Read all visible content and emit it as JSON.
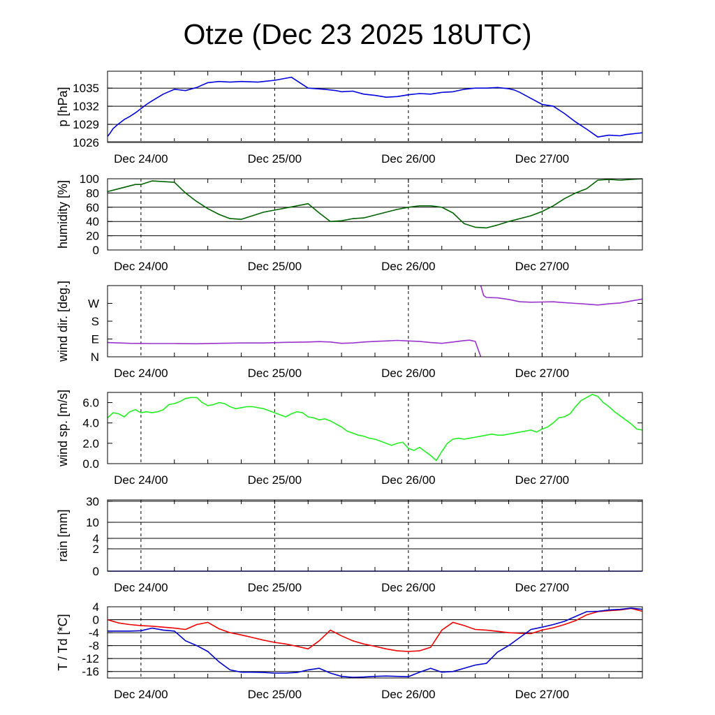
{
  "title": "Otze (Dec 23 2025 18UTC)",
  "colors": {
    "pressure": "#0000dd",
    "humidity": "#006400",
    "wind_dir": "#9932cc",
    "wind_speed": "#22ee22",
    "rain": "#0000aa",
    "temperature": "#ee0000",
    "dewpoint": "#0000cc"
  },
  "x_ticks": [
    "Dec 24/00",
    "Dec 25/00",
    "Dec 26/00",
    "Dec 27/00"
  ],
  "chart_data": [
    {
      "type": "line",
      "ylabel": "p [hPa]",
      "ylim": [
        1026,
        1037.8
      ],
      "yticks": [
        1026,
        1029,
        1032,
        1035
      ],
      "ytick_labels": [
        "1026",
        "1029",
        "1032",
        "1035"
      ],
      "grid": true,
      "series": [
        {
          "color_key": "pressure",
          "x": [
            0,
            0.5,
            1,
            2,
            3,
            4,
            5,
            6,
            7,
            8,
            10,
            12,
            14,
            16,
            18,
            20,
            22,
            24,
            27,
            30,
            33,
            36,
            39,
            40,
            41,
            42,
            44,
            46,
            48,
            50,
            52,
            54,
            56,
            58,
            60,
            62,
            64,
            66,
            68,
            70,
            72,
            73,
            74,
            76,
            78,
            80,
            82,
            84,
            86,
            88,
            90,
            92,
            93,
            94,
            95,
            96
          ],
          "y": [
            1027,
            1027.6,
            1028.3,
            1029.1,
            1029.8,
            1030.3,
            1030.9,
            1031.6,
            1032.3,
            1032.9,
            1034,
            1034.8,
            1034.6,
            1035.1,
            1035.9,
            1036.1,
            1036.0,
            1036.1,
            1036.0,
            1036.3,
            1036.8,
            1035.0,
            1034.8,
            1034.7,
            1034.6,
            1034.4,
            1034.5,
            1034.0,
            1033.8,
            1033.5,
            1033.6,
            1033.9,
            1034.1,
            1034.0,
            1034.3,
            1034.4,
            1034.8,
            1035.0,
            1035.0,
            1035.1,
            1034.9,
            1034.7,
            1034.3,
            1033.3,
            1032.3,
            1032.0,
            1030.8,
            1029.4,
            1028.2,
            1026.9,
            1027.2,
            1027.1,
            1027.3,
            1027.4,
            1027.5,
            1027.6
          ]
        }
      ]
    },
    {
      "type": "line",
      "ylabel": "humidity [%]",
      "ylim": [
        0,
        100
      ],
      "yticks": [
        0,
        20,
        40,
        60,
        80,
        100
      ],
      "ytick_labels": [
        "0",
        "20",
        "40",
        "60",
        "80",
        "100"
      ],
      "grid": true,
      "series": [
        {
          "color_key": "humidity",
          "x": [
            0,
            2,
            4,
            5,
            6,
            8,
            10,
            12,
            14,
            16,
            18,
            20,
            22,
            24,
            26,
            28,
            30,
            32,
            34,
            36,
            38,
            40,
            42,
            44,
            46,
            48,
            50,
            52,
            54,
            56,
            58,
            60,
            62,
            64,
            66,
            68,
            70,
            72,
            74,
            76,
            78,
            80,
            82,
            84,
            86,
            88,
            90,
            92,
            94,
            96
          ],
          "y": [
            82,
            86,
            90,
            92,
            92,
            97,
            96,
            95,
            80,
            68,
            58,
            50,
            44,
            43,
            48,
            53,
            56,
            59,
            62,
            65,
            52,
            40,
            41,
            44,
            45,
            49,
            53,
            57,
            60,
            62,
            62,
            60,
            52,
            37,
            32,
            31,
            35,
            40,
            44,
            48,
            54,
            62,
            72,
            80,
            86,
            98,
            99,
            98,
            99,
            100
          ]
        }
      ]
    },
    {
      "type": "line",
      "ylabel": "wind dir. [deg.]",
      "ylim": [
        0,
        360
      ],
      "yticks": [
        0,
        90,
        180,
        270
      ],
      "ytick_labels": [
        "N",
        "E",
        "S",
        "W"
      ],
      "grid": false,
      "series": [
        {
          "color_key": "wind_dir",
          "x": [
            0,
            4,
            8,
            12,
            16,
            20,
            24,
            28,
            32,
            36,
            38,
            40,
            42,
            44,
            46,
            48,
            50,
            52,
            54,
            56,
            58,
            60,
            62,
            64,
            65,
            66,
            67
          ],
          "y": [
            72,
            68,
            67,
            67,
            66,
            68,
            70,
            70,
            73,
            75,
            77,
            75,
            68,
            70,
            75,
            78,
            80,
            83,
            80,
            78,
            72,
            68,
            75,
            82,
            84,
            78,
            0
          ]
        },
        {
          "color_key": "wind_dir",
          "x": [
            67,
            67.5,
            68,
            70,
            72,
            74,
            76,
            78,
            80,
            82,
            84,
            86,
            88,
            90,
            92,
            94,
            96
          ],
          "y": [
            360,
            310,
            300,
            298,
            290,
            278,
            276,
            277,
            278,
            274,
            270,
            266,
            262,
            268,
            272,
            282,
            292
          ]
        }
      ]
    },
    {
      "type": "line",
      "ylabel": "wind sp. [m/s]",
      "ylim": [
        0,
        7
      ],
      "yticks": [
        0,
        2,
        4,
        6
      ],
      "ytick_labels": [
        "0.0",
        "2.0",
        "4.0",
        "6.0"
      ],
      "grid": false,
      "series": [
        {
          "color_key": "wind_speed",
          "x": [
            0,
            1,
            2,
            3,
            4,
            5,
            6,
            7,
            8,
            9,
            10,
            11,
            12,
            13,
            14,
            15,
            16,
            17,
            18,
            19,
            20,
            21,
            22,
            23,
            24,
            25,
            26,
            27,
            28,
            29,
            30,
            31,
            32,
            33,
            34,
            35,
            36,
            37,
            38,
            39,
            40,
            41,
            42,
            43,
            44,
            45,
            46,
            47,
            48,
            49,
            50,
            51,
            52,
            53,
            54,
            55,
            56,
            57,
            58,
            59,
            60,
            61,
            62,
            63,
            64,
            65,
            66,
            67,
            68,
            69,
            70,
            71,
            72,
            73,
            74,
            75,
            76,
            77,
            78,
            79,
            80,
            81,
            82,
            83,
            84,
            85,
            86,
            87,
            88,
            89,
            90,
            91,
            92,
            93,
            94,
            95,
            96
          ],
          "y": [
            4.5,
            5.0,
            4.9,
            4.6,
            5.1,
            5.3,
            5.0,
            5.1,
            5.0,
            5.1,
            5.3,
            5.8,
            5.9,
            6.1,
            6.4,
            6.5,
            6.5,
            6.0,
            5.7,
            5.8,
            6.0,
            5.9,
            5.6,
            5.4,
            5.5,
            5.6,
            5.6,
            5.5,
            5.4,
            5.2,
            5.0,
            4.8,
            4.6,
            4.9,
            5.1,
            5.0,
            4.6,
            4.5,
            4.3,
            4.4,
            4.2,
            3.9,
            3.6,
            3.2,
            3.0,
            2.8,
            2.7,
            2.5,
            2.4,
            2.2,
            2.0,
            1.8,
            2.0,
            2.1,
            1.5,
            1.3,
            1.6,
            1.2,
            0.8,
            0.3,
            1.2,
            2.0,
            2.4,
            2.5,
            2.4,
            2.5,
            2.6,
            2.7,
            2.8,
            2.9,
            2.8,
            2.8,
            2.9,
            3.0,
            3.1,
            3.2,
            3.3,
            3.1,
            3.4,
            3.6,
            4.0,
            4.5,
            4.6,
            4.9,
            5.6,
            6.2,
            6.5,
            6.8,
            6.6,
            6.0,
            5.6,
            5.1,
            4.7,
            4.3,
            3.9,
            3.4,
            3.3
          ]
        }
      ]
    },
    {
      "type": "line",
      "ylabel": "rain [mm]",
      "ylim": [
        0,
        32
      ],
      "yticks": [
        0,
        2,
        4,
        10,
        30
      ],
      "ytick_labels": [
        "0",
        "2",
        "4",
        "10",
        "30"
      ],
      "grid": true,
      "series": [
        {
          "color_key": "rain",
          "x": [
            0,
            96
          ],
          "y": [
            0,
            0
          ]
        }
      ]
    },
    {
      "type": "line",
      "ylabel": "T / Td [*C]",
      "ylim": [
        -18,
        4
      ],
      "yticks": [
        -16,
        -12,
        -8,
        -4,
        0,
        4
      ],
      "ytick_labels": [
        "-16",
        "-12",
        "-8",
        "-4",
        "0",
        "4"
      ],
      "grid": true,
      "series": [
        {
          "color_key": "temperature",
          "x": [
            0,
            2,
            4,
            6,
            8,
            10,
            12,
            14,
            16,
            18,
            20,
            22,
            24,
            26,
            28,
            30,
            32,
            34,
            36,
            38,
            40,
            42,
            44,
            46,
            48,
            50,
            52,
            54,
            56,
            58,
            60,
            62,
            64,
            66,
            68,
            70,
            72,
            74,
            76,
            78,
            80,
            82,
            84,
            86,
            88,
            90,
            92,
            94,
            96
          ],
          "y": [
            0,
            -1,
            -1.5,
            -1.8,
            -2,
            -2.3,
            -2.6,
            -3,
            -1.5,
            -0.8,
            -2.8,
            -4.0,
            -4.7,
            -5.5,
            -6.3,
            -7.0,
            -7.5,
            -8.2,
            -9.0,
            -6.5,
            -3.2,
            -5.0,
            -6.5,
            -7.5,
            -8.2,
            -9.0,
            -9.6,
            -9.8,
            -9.6,
            -8.5,
            -3.2,
            -0.8,
            -1.8,
            -3.0,
            -3.2,
            -3.6,
            -4.0,
            -4.2,
            -4.3,
            -3.2,
            -2.5,
            -1.5,
            -0.3,
            1.5,
            2.5,
            2.8,
            3.0,
            3.5,
            2.6
          ]
        },
        {
          "color_key": "dewpoint",
          "x": [
            0,
            2,
            4,
            6,
            8,
            10,
            12,
            14,
            16,
            18,
            20,
            22,
            24,
            26,
            28,
            30,
            32,
            34,
            36,
            38,
            40,
            42,
            44,
            46,
            48,
            50,
            52,
            54,
            56,
            58,
            60,
            62,
            64,
            66,
            68,
            70,
            72,
            74,
            76,
            78,
            80,
            82,
            84,
            86,
            88,
            90,
            92,
            94,
            96
          ],
          "y": [
            -3.5,
            -3.5,
            -3.5,
            -3.4,
            -2.6,
            -3.2,
            -3.5,
            -6.5,
            -8.0,
            -9.8,
            -13.0,
            -15.5,
            -16.2,
            -16.2,
            -16.3,
            -16.5,
            -16.5,
            -16.3,
            -15.5,
            -15.0,
            -16.5,
            -17.5,
            -17.8,
            -17.7,
            -17.5,
            -17.4,
            -17.5,
            -17.6,
            -16.2,
            -15.0,
            -16.2,
            -16.0,
            -15.0,
            -14.0,
            -13.5,
            -10.0,
            -8.0,
            -5.5,
            -3.0,
            -2.3,
            -1.5,
            -0.5,
            1.0,
            2.5,
            2.6,
            3.0,
            3.2,
            3.6,
            3.2
          ]
        }
      ]
    }
  ]
}
